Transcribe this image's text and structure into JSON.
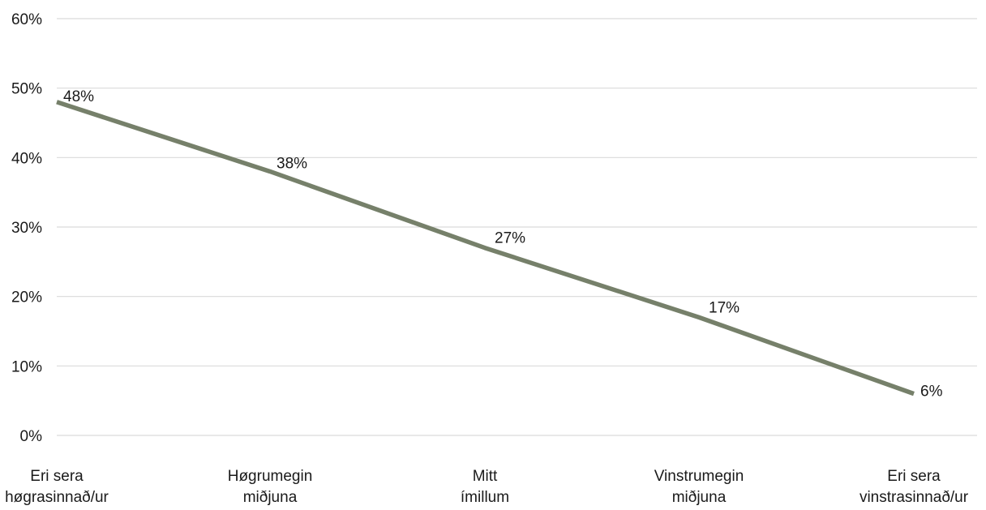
{
  "chart_data": {
    "type": "line",
    "title": "",
    "xlabel": "",
    "ylabel": "",
    "categories": [
      [
        "Eri sera",
        "høgrasinnað/ur"
      ],
      [
        "Høgrumegin",
        "miðjuna"
      ],
      [
        "Mitt",
        "ímillum"
      ],
      [
        "Vinstrumegin",
        "miðjuna"
      ],
      [
        "Eri sera",
        "vinstrasinnað/ur"
      ]
    ],
    "series": [
      {
        "values": [
          48,
          38,
          27,
          17,
          6
        ],
        "labels": [
          "48%",
          "38%",
          "27%",
          "17%",
          "6%"
        ],
        "color": "#76806a"
      }
    ],
    "ylim": [
      0,
      60
    ],
    "y_ticks": [
      0,
      10,
      20,
      30,
      40,
      50,
      60
    ],
    "y_tick_labels": [
      "0%",
      "10%",
      "20%",
      "30%",
      "40%",
      "50%",
      "60%"
    ],
    "grid": true,
    "gridline_color": "#d9d9d9",
    "legend": "none"
  }
}
